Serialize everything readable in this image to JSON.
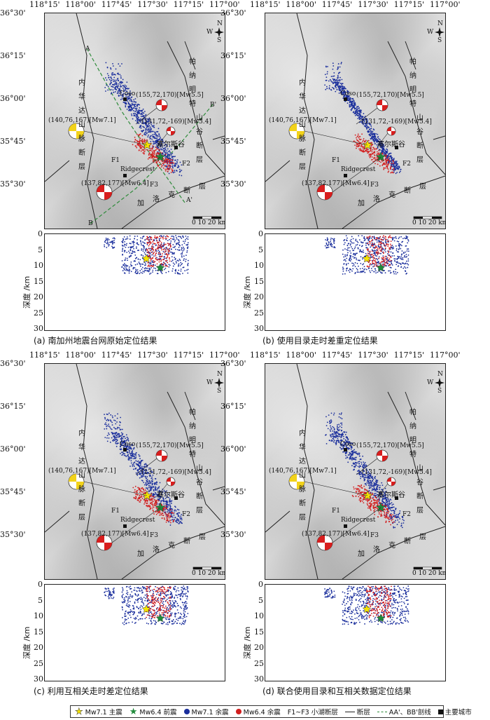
{
  "lon_ticks": [
    "118°15'",
    "118°00'",
    "117°45'",
    "117°30'",
    "117°15'",
    "117°00'"
  ],
  "lat_ticks": [
    "36°30'",
    "36°15'",
    "36°00'",
    "35°45'",
    "35°30'"
  ],
  "depth_ticks": [
    "0",
    "5",
    "10",
    "15",
    "20",
    "25",
    "30"
  ],
  "depth_label": "深度 /km",
  "map_labels": {
    "coso": "Coso",
    "ridgecrest": "Ridgecrest",
    "searles": "塞尔斯谷",
    "f1": "F1",
    "f2": "F2",
    "f3": "F3",
    "a": "A",
    "a2": "A'",
    "b": "B",
    "b2": "B'",
    "scale": "0   10   20 km",
    "fm_mw71": "(140,76,167)[Mw7.1]",
    "fm_mw64": "(137,82,177)[Mw6.4]",
    "fm_mw55": "(155,72,170)[Mw5.5]",
    "fm_mw54": "(131,72,-169)[Mw5.4]",
    "compass": "N W E S"
  },
  "fault_names": {
    "left": [
      "内",
      "华",
      "达",
      "山",
      "脉",
      "断",
      "层"
    ],
    "right": [
      "帕",
      "纳",
      "明",
      "特",
      "山",
      "谷",
      "断",
      "层"
    ],
    "bottom": [
      "加",
      "洛",
      "克",
      "断",
      "层"
    ]
  },
  "captions": [
    "(a) 南加州地震台网原始定位结果",
    "(b) 使用目录走时差重定位结果",
    "(c) 利用互相关走时差定位结果",
    "(d) 联合使用目录和互相关数据定位结果"
  ],
  "legend": {
    "mainshock": "Mw7.1 主震",
    "foreshock": "Mw6.4 前震",
    "aftershock71": "Mw7.1 余震",
    "aftershock64": "Mw6.4 余震",
    "faults_f": "F1~F3 小湖断层",
    "fault": "断层",
    "profile": "AA'、BB'剖线",
    "city": "主要城市"
  },
  "colors": {
    "aftershock71": "#1a2e9c",
    "aftershock64": "#d21e1e",
    "mainshock": "#f5e400",
    "foreshock": "#1f8a3a",
    "fm_yellow": "#f2d21a",
    "fm_red": "#d81e1e"
  }
}
